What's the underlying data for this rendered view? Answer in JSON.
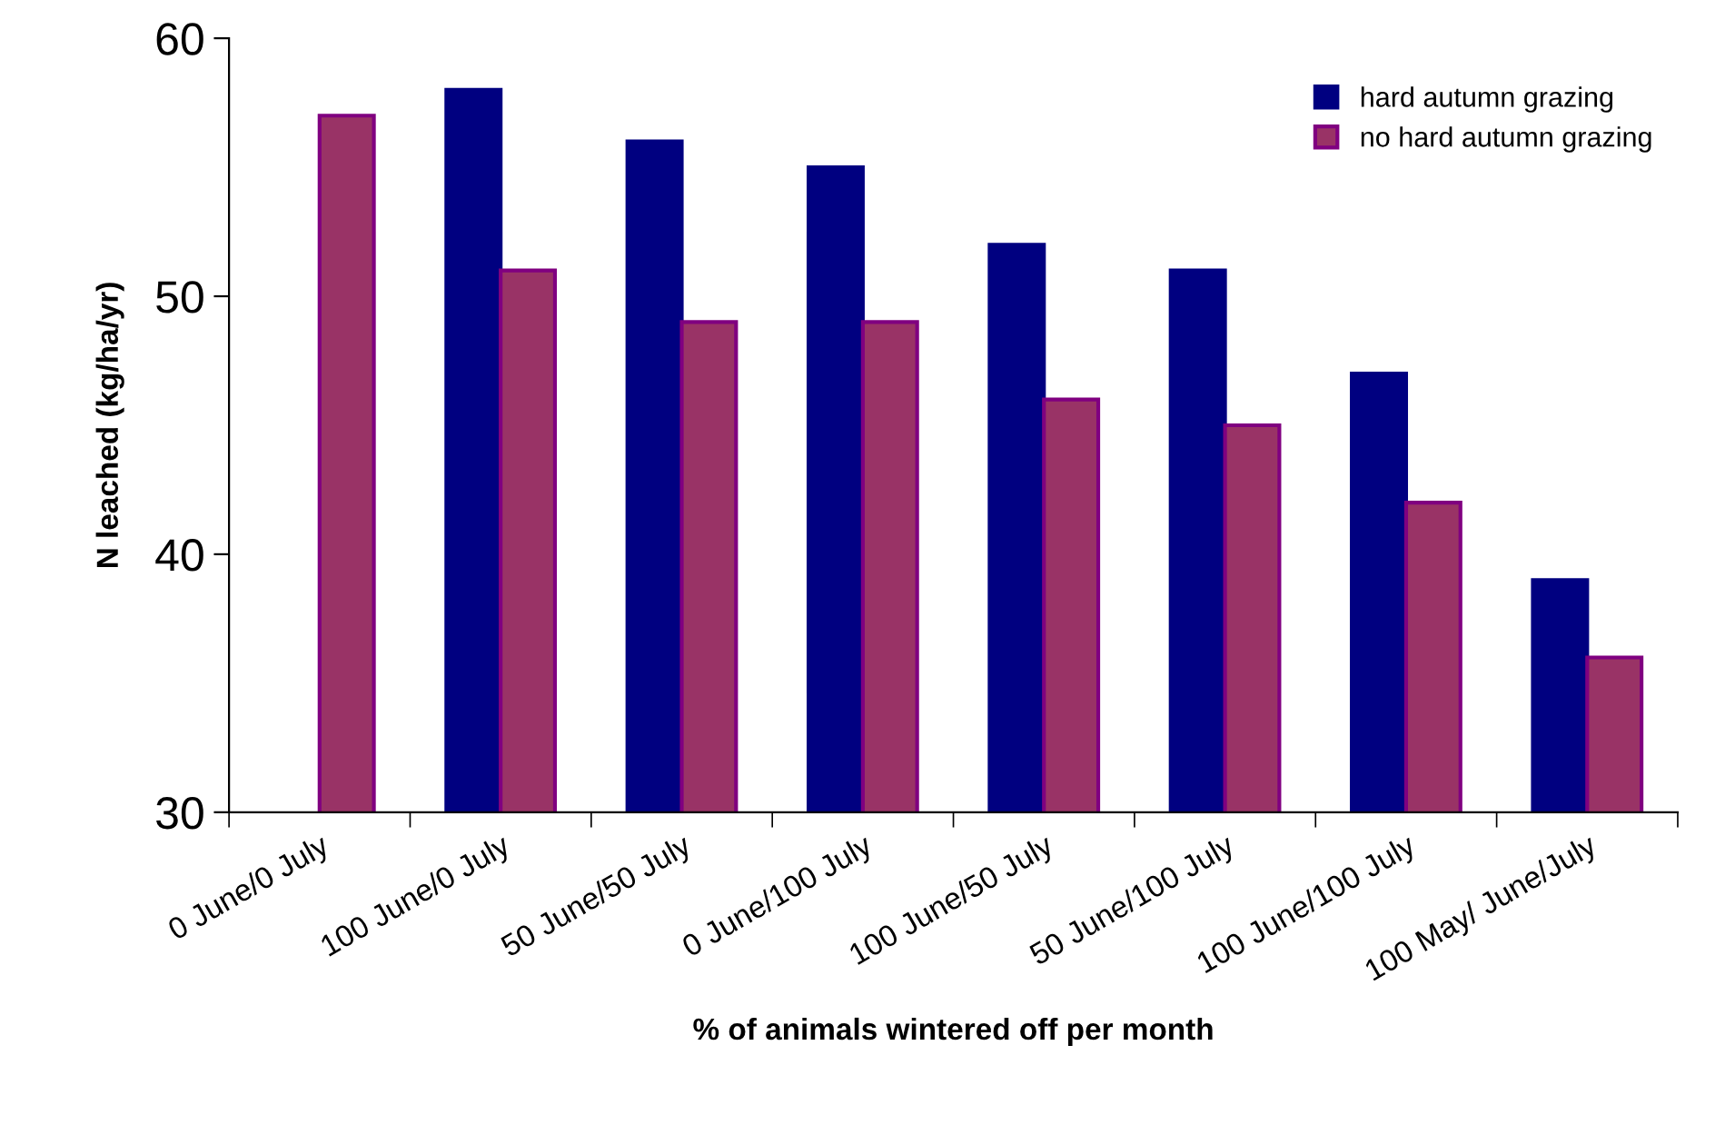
{
  "chart_data": {
    "type": "bar",
    "xlabel": "% of animals wintered off per month",
    "ylabel": "N leached (kg/ha/yr)",
    "categories": [
      "0 June/0 July",
      "100 June/0 July",
      "50 June/50 July",
      "0 June/100 July",
      "100 June/50 July",
      "50 June/100 July",
      "100 June/100 July",
      "100 May/ June/July"
    ],
    "series": [
      {
        "name": "hard autumn grazing",
        "color": "#000080",
        "values": [
          null,
          58,
          56,
          55,
          52,
          51,
          47,
          39
        ]
      },
      {
        "name": "no hard autumn grazing",
        "color": "#993366",
        "values": [
          57,
          51,
          49,
          49,
          46,
          45,
          42,
          36
        ]
      }
    ],
    "ylim": [
      30,
      60
    ],
    "yticks": [
      30,
      40,
      50,
      60
    ],
    "grid": false,
    "legend": "top right"
  }
}
